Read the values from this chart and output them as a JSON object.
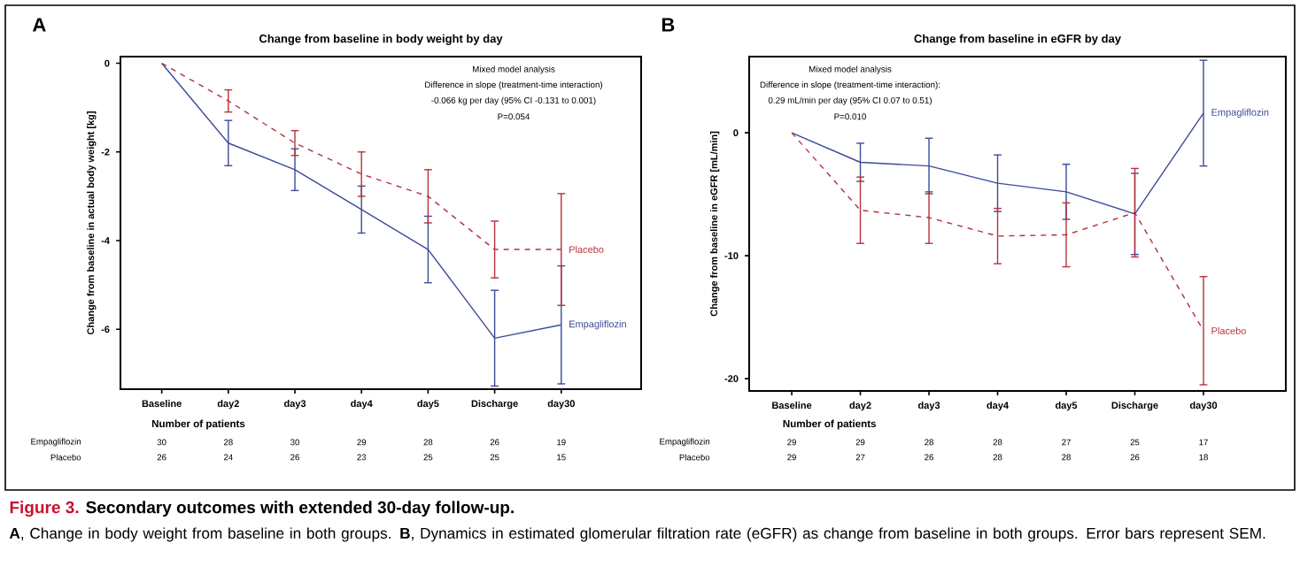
{
  "chart_data": [
    {
      "type": "line",
      "title": "Change from baseline in body weight by day",
      "ylabel": "Change from baseline in actual body weight [kg]",
      "categories": [
        "Baseline",
        "day2",
        "day3",
        "day4",
        "day5",
        "Discharge",
        "day30"
      ],
      "ylim": [
        -7.35,
        0.15
      ],
      "yticks": [
        0,
        -2,
        -4,
        -6
      ],
      "marker": "none",
      "series": [
        {
          "name": "Empagliflozin",
          "color": "#3b4a9c",
          "line_style": "solid",
          "values": [
            0,
            -1.8,
            -2.4,
            -3.3,
            -4.2,
            -6.2,
            -5.9
          ],
          "errors": [
            null,
            0.51,
            0.47,
            0.53,
            0.75,
            1.08,
            1.33
          ]
        },
        {
          "name": "Placebo",
          "color": "#b5323a",
          "line_style": "dashed",
          "values": [
            0,
            -0.85,
            -1.8,
            -2.5,
            -3.0,
            -4.2,
            -4.2
          ],
          "errors": [
            null,
            0.25,
            0.28,
            0.5,
            0.6,
            0.64,
            1.26
          ]
        }
      ],
      "annotations": [
        "A",
        "Mixed model analysis",
        "Difference in slope (treatment-time interaction)",
        "-0.066 kg per day (95% CI -0.131 to 0.001)",
        "P=0.054",
        "Number of patients",
        "Empagliflozin",
        "30",
        "28",
        "30",
        "29",
        "28",
        "26",
        "19",
        "Placebo",
        "26",
        "24",
        "26",
        "23",
        "25",
        "25",
        "15"
      ]
    },
    {
      "type": "line",
      "title": "Change from baseline in eGFR by day",
      "ylabel": "Change from baseline in eGFR [mL/min]",
      "categories": [
        "Baseline",
        "day2",
        "day3",
        "day4",
        "day5",
        "Discharge",
        "day30"
      ],
      "ylim": [
        -21,
        6.2
      ],
      "yticks": [
        0,
        -10,
        -20
      ],
      "marker": "none",
      "series": [
        {
          "name": "Empagliflozin",
          "color": "#3b4a9c",
          "line_style": "solid",
          "values": [
            0,
            -2.4,
            -2.7,
            -4.1,
            -4.8,
            -6.6,
            1.6
          ],
          "errors": [
            null,
            1.55,
            2.26,
            2.3,
            2.24,
            3.3,
            4.3
          ]
        },
        {
          "name": "Placebo",
          "color": "#b5323a",
          "line_style": "dashed",
          "values": [
            0,
            -6.3,
            -6.9,
            -8.4,
            -8.3,
            -6.5,
            -16.1
          ],
          "errors": [
            null,
            2.7,
            2.1,
            2.25,
            2.6,
            3.6,
            4.4
          ]
        }
      ],
      "annotations": [
        "B",
        "Mixed model analysis",
        "Difference in slope (treatment-time interaction):",
        "0.29 mL/min per day (95% CI 0.07 to 0.51)",
        "P=0.010",
        "Number of patients",
        "Empagliflozin",
        "29",
        "29",
        "28",
        "28",
        "27",
        "25",
        "17",
        "Placebo",
        "29",
        "27",
        "26",
        "28",
        "28",
        "26",
        "18",
        "Figure 3.",
        "Secondary outcomes with extended 30-day follow-up.",
        "**A**, Change in body weight from baseline in both groups. **B**, Dynamics in estimated glomerular filtration rate (eGFR) as change from baseline in both groups. Error bars represent SEM."
      ]
    }
  ]
}
